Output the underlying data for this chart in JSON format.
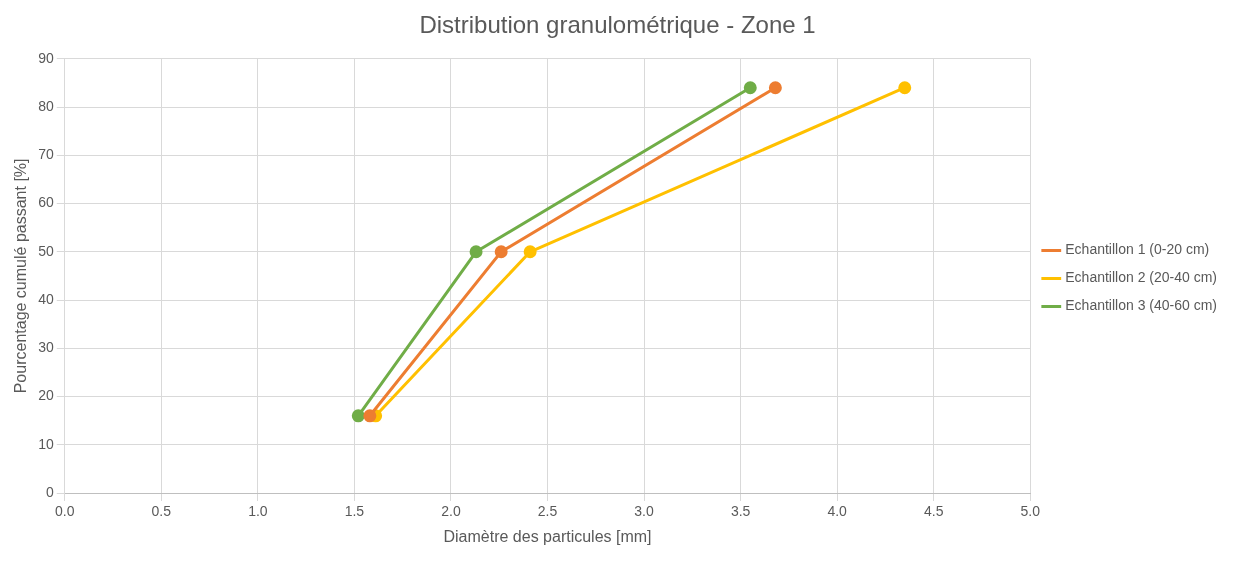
{
  "chart_data": {
    "type": "line",
    "title": "Distribution granulométrique - Zone 1",
    "xlabel": "Diamètre des particules [mm]",
    "ylabel": "Pourcentage cumulé passant [%]",
    "xlim": [
      0,
      5
    ],
    "xticks": [
      {
        "value": 0,
        "label": "0.0"
      },
      {
        "value": 0.5,
        "label": "0.5"
      },
      {
        "value": 1,
        "label": "1.0"
      },
      {
        "value": 1.5,
        "label": "1.5"
      },
      {
        "value": 2,
        "label": "2.0"
      },
      {
        "value": 2.5,
        "label": "2.5"
      },
      {
        "value": 3,
        "label": "3.0"
      },
      {
        "value": 3.5,
        "label": "3.5"
      },
      {
        "value": 4,
        "label": "4.0"
      },
      {
        "value": 4.5,
        "label": "4.5"
      },
      {
        "value": 5,
        "label": "5.0"
      }
    ],
    "ylim": [
      0,
      90
    ],
    "yticks": [
      0,
      10,
      20,
      30,
      40,
      50,
      60,
      70,
      80,
      90
    ],
    "grid": true,
    "legend": "right",
    "marker": "circle",
    "line_style": "solid",
    "series": [
      {
        "name": "Echantillon 1 (0-20 cm)",
        "color": "#ed7d31",
        "x": [
          1.58,
          2.26,
          3.68
        ],
        "values": [
          16,
          50,
          84
        ]
      },
      {
        "name": "Echantillon 2 (20-40 cm)",
        "color": "#ffc000",
        "x": [
          1.61,
          2.41,
          4.35
        ],
        "values": [
          16,
          50,
          84
        ]
      },
      {
        "name": "Echantillon 3 (40-60 cm)",
        "color": "#70ad47",
        "x": [
          1.52,
          2.13,
          3.55
        ],
        "values": [
          16,
          50,
          84
        ]
      }
    ]
  }
}
